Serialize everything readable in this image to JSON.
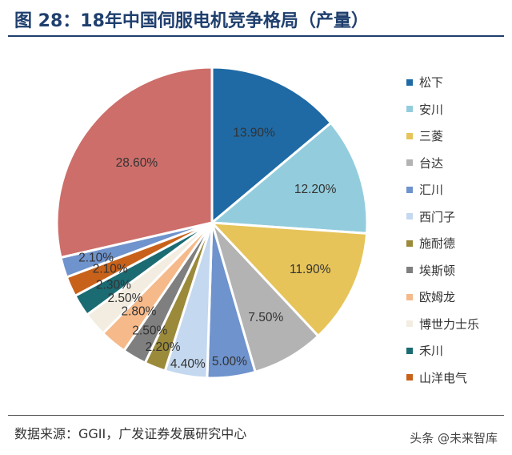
{
  "header": {
    "title": "图 28：18年中国伺服电机竞争格局（产量）"
  },
  "footer": {
    "source": "数据来源：GGII，广发证券发展研究中心",
    "watermark": "头条 @未来智库"
  },
  "chart_data": {
    "type": "pie",
    "title": "18年中国伺服电机竞争格局（产量）",
    "legend_position": "right",
    "series": [
      {
        "name": "松下",
        "value": 13.9,
        "label": "13.90%",
        "color": "#1f6aa5"
      },
      {
        "name": "安川",
        "value": 12.2,
        "label": "12.20%",
        "color": "#93cddd"
      },
      {
        "name": "三菱",
        "value": 11.9,
        "label": "11.90%",
        "color": "#e6c45a"
      },
      {
        "name": "台达",
        "value": 7.5,
        "label": "7.50%",
        "color": "#b3b3b3"
      },
      {
        "name": "汇川",
        "value": 5.0,
        "label": "5.00%",
        "color": "#6f93cc"
      },
      {
        "name": "西门子",
        "value": 4.4,
        "label": "4.40%",
        "color": "#c4d8ef"
      },
      {
        "name": "施耐德",
        "value": 2.2,
        "label": "2.20%",
        "color": "#9a8a3a"
      },
      {
        "name": "埃斯顿",
        "value": 2.5,
        "label": "2.50%",
        "color": "#7f7f7f"
      },
      {
        "name": "欧姆龙",
        "value": 2.8,
        "label": "2.80%",
        "color": "#f5b98a"
      },
      {
        "name": "博世力士乐",
        "value": 2.5,
        "label": "2.50%",
        "color": "#f2ede0"
      },
      {
        "name": "禾川",
        "value": 2.3,
        "label": "2.30%",
        "color": "#1b6b73"
      },
      {
        "name": "山洋电气",
        "value": 2.1,
        "label": "2.10%",
        "color": "#c8621a"
      },
      {
        "name": "",
        "value": 2.1,
        "label": "2.10%",
        "color": "#6f93cc"
      },
      {
        "name": "",
        "value": 28.6,
        "label": "28.60%",
        "color": "#cd6e6a"
      }
    ]
  }
}
